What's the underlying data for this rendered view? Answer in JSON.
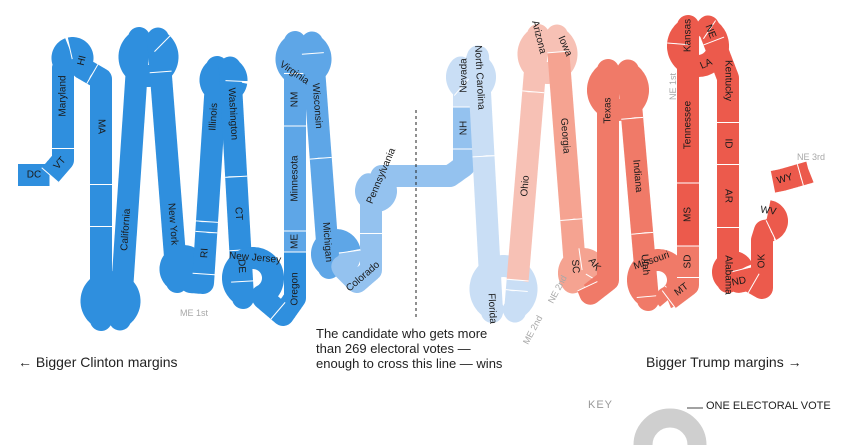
{
  "colors": {
    "clinton_solid": "#2f8fde",
    "clinton_likely": "#5ea6e7",
    "clinton_lean": "#94c2ef",
    "clinton_tossup": "#c9def5",
    "trump_tossup": "#f7c1b5",
    "trump_lean": "#f5a391",
    "trump_likely": "#f07a68",
    "trump_solid": "#ec5a4c",
    "key": "#cfcfcf"
  },
  "states": [
    {
      "label": "DC",
      "ev": 3,
      "tier": "clinton_solid"
    },
    {
      "label": "VT",
      "ev": 3,
      "tier": "clinton_solid"
    },
    {
      "label": "Maryland",
      "ev": 10,
      "tier": "clinton_solid"
    },
    {
      "label": "HI",
      "ev": 4,
      "tier": "clinton_solid"
    },
    {
      "label": "MA",
      "ev": 11,
      "tier": "clinton_solid"
    },
    {
      "label": "",
      "ev": 4,
      "tier": "clinton_solid"
    },
    {
      "label": "California",
      "ev": 55,
      "tier": "clinton_solid"
    },
    {
      "label": "",
      "ev": 4,
      "tier": "clinton_solid"
    },
    {
      "label": "New York",
      "ev": 29,
      "tier": "clinton_solid"
    },
    {
      "label": "RI",
      "ev": 4,
      "tier": "clinton_solid"
    },
    {
      "label": "",
      "ev": 1,
      "tier": "clinton_solid"
    },
    {
      "label": "Illinois",
      "ev": 20,
      "tier": "clinton_solid"
    },
    {
      "label": "Washington",
      "ev": 12,
      "tier": "clinton_solid"
    },
    {
      "label": "CT",
      "ev": 7,
      "tier": "clinton_solid"
    },
    {
      "label": "DE",
      "ev": 3,
      "tier": "clinton_solid"
    },
    {
      "label": "New Jersey",
      "ev": 14,
      "tier": "clinton_solid"
    },
    {
      "label": "Oregon",
      "ev": 7,
      "tier": "clinton_solid"
    },
    {
      "label": "ME",
      "ev": 2,
      "tier": "clinton_likely"
    },
    {
      "label": "Minnesota",
      "ev": 10,
      "tier": "clinton_likely"
    },
    {
      "label": "NM",
      "ev": 5,
      "tier": "clinton_likely"
    },
    {
      "label": "Virginia",
      "ev": 13,
      "tier": "clinton_likely"
    },
    {
      "label": "Wisconsin",
      "ev": 10,
      "tier": "clinton_likely"
    },
    {
      "label": "Michigan",
      "ev": 16,
      "tier": "clinton_likely"
    },
    {
      "label": "Colorado",
      "ev": 9,
      "tier": "clinton_lean"
    },
    {
      "label": "Pennsylvania",
      "ev": 20,
      "tier": "clinton_lean"
    },
    {
      "label": "NH",
      "ev": 4,
      "tier": "clinton_lean"
    },
    {
      "label": "Nevada",
      "ev": 6,
      "tier": "clinton_tossup"
    },
    {
      "label": "North Carolina",
      "ev": 15,
      "tier": "clinton_tossup"
    },
    {
      "label": "Florida",
      "ev": 29,
      "tier": "clinton_tossup"
    },
    {
      "label": "",
      "ev": 1,
      "tier": "clinton_tossup"
    },
    {
      "label": "Ohio",
      "ev": 18,
      "tier": "trump_tossup"
    },
    {
      "label": "Arizona",
      "ev": 11,
      "tier": "trump_tossup"
    },
    {
      "label": "Iowa",
      "ev": 6,
      "tier": "trump_tossup"
    },
    {
      "label": "Georgia",
      "ev": 16,
      "tier": "trump_lean"
    },
    {
      "label": "SC",
      "ev": 9,
      "tier": "trump_lean"
    },
    {
      "label": "AK",
      "ev": 3,
      "tier": "trump_lean"
    },
    {
      "label": "",
      "ev": 1,
      "tier": "trump_lean"
    },
    {
      "label": "Texas",
      "ev": 38,
      "tier": "trump_likely"
    },
    {
      "label": "Indiana",
      "ev": 11,
      "tier": "trump_likely"
    },
    {
      "label": "Utah",
      "ev": 6,
      "tier": "trump_likely"
    },
    {
      "label": "Missouri",
      "ev": 10,
      "tier": "trump_likely"
    },
    {
      "label": "",
      "ev": 1,
      "tier": "trump_likely"
    },
    {
      "label": "MT",
      "ev": 3,
      "tier": "trump_likely"
    },
    {
      "label": "SD",
      "ev": 3,
      "tier": "trump_likely"
    },
    {
      "label": "MS",
      "ev": 6,
      "tier": "trump_solid"
    },
    {
      "label": "Tennessee",
      "ev": 11,
      "tier": "trump_solid"
    },
    {
      "label": "Kansas",
      "ev": 6,
      "tier": "trump_solid"
    },
    {
      "label": "LA",
      "ev": 8,
      "tier": "trump_solid"
    },
    {
      "label": "NE",
      "ev": 2,
      "tier": "trump_solid"
    },
    {
      "label": "Kentucky",
      "ev": 8,
      "tier": "trump_solid"
    },
    {
      "label": "ID",
      "ev": 4,
      "tier": "trump_solid"
    },
    {
      "label": "AR",
      "ev": 6,
      "tier": "trump_solid"
    },
    {
      "label": "Alabama",
      "ev": 9,
      "tier": "trump_solid"
    },
    {
      "label": "ND",
      "ev": 3,
      "tier": "trump_solid"
    },
    {
      "label": "OK",
      "ev": 7,
      "tier": "trump_solid"
    },
    {
      "label": "WV",
      "ev": 5,
      "tier": "trump_solid"
    },
    {
      "label": "WY",
      "ev": 3,
      "tier": "trump_solid"
    },
    {
      "label": "",
      "ev": 1,
      "tier": "trump_solid"
    }
  ],
  "district_labels": {
    "me_1st": "ME 1st",
    "me_2nd": "ME 2nd",
    "ne_2nd": "NE 2nd",
    "ne_1st": "NE 1st",
    "ne_3rd": "NE 3rd"
  },
  "captions": {
    "left": "← Bigger Clinton margins",
    "right": "Bigger Trump margins →",
    "note": "The candidate who gets more than 269 electoral votes — enough to cross this line — wins"
  },
  "key": {
    "label": "KEY",
    "description": "ONE ELECTORAL VOTE"
  }
}
